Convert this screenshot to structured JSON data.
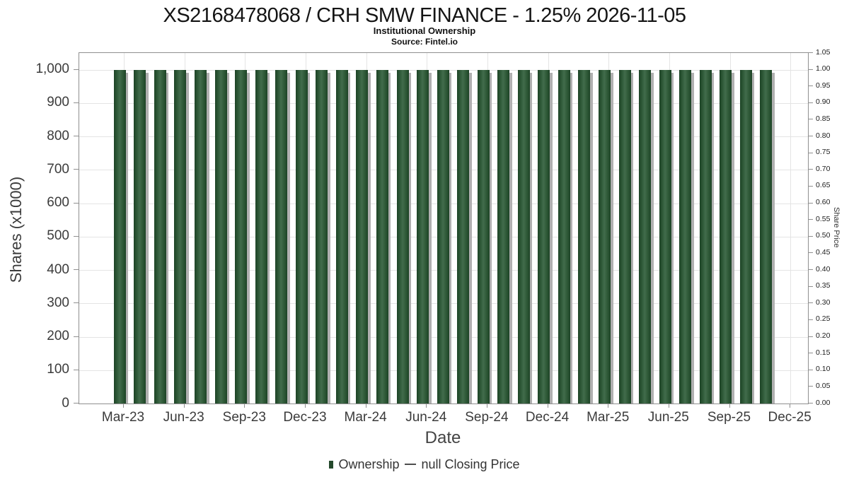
{
  "title": "XS2168478068 / CRH SMW FINANCE - 1.25% 2026-11-05",
  "subtitle": "Institutional Ownership",
  "source": "Source: Fintel.io",
  "colors": {
    "bar_edge": "#1d4426",
    "bar_mid": "#2c5635",
    "bar_highlight": "#416c4b",
    "bar_shadow": "#b0b0b0",
    "grid": "#e4e4e4",
    "frame": "#8f8f8f",
    "text": "#3b3b3b"
  },
  "chart_data": {
    "type": "bar",
    "title": "XS2168478068 / CRH SMW FINANCE - 1.25% 2026-11-05",
    "subtitle": "Institutional Ownership",
    "source": "Source: Fintel.io",
    "xlabel": "Date",
    "categories": [
      "Mar-23",
      "Apr-23",
      "May-23",
      "Jun-23",
      "Jul-23",
      "Aug-23",
      "Sep-23",
      "Oct-23",
      "Nov-23",
      "Dec-23",
      "Jan-24",
      "Feb-24",
      "Mar-24",
      "Apr-24",
      "May-24",
      "Jun-24",
      "Jul-24",
      "Aug-24",
      "Sep-24",
      "Oct-24",
      "Nov-24",
      "Dec-24",
      "Jan-25",
      "Feb-25",
      "Mar-25",
      "Apr-25",
      "May-25",
      "Jun-25",
      "Jul-25",
      "Aug-25",
      "Sep-25",
      "Oct-25",
      "Nov-25"
    ],
    "values": [
      1000,
      1000,
      1000,
      1000,
      1000,
      1000,
      1000,
      1000,
      1000,
      1000,
      1000,
      1000,
      1000,
      1000,
      1000,
      1000,
      1000,
      1000,
      1000,
      1000,
      1000,
      1000,
      1000,
      1000,
      1000,
      1000,
      1000,
      1000,
      1000,
      1000,
      1000,
      1000,
      1000
    ],
    "series": [
      {
        "name": "Ownership",
        "values_note": "all months 1000 (x1000 shares)"
      }
    ],
    "x_tick_labels": [
      "Mar-23",
      "Jun-23",
      "Sep-23",
      "Dec-23",
      "Mar-24",
      "Jun-24",
      "Sep-24",
      "Dec-24",
      "Mar-25",
      "Jun-25",
      "Sep-25",
      "Dec-25"
    ],
    "left_axis": {
      "label": "Shares (x1000)",
      "min": 0,
      "max": 1050,
      "tick_step": 100,
      "tick_labels": [
        "0",
        "100",
        "200",
        "300",
        "400",
        "500",
        "600",
        "700",
        "800",
        "900",
        "1,000"
      ]
    },
    "right_axis": {
      "label": "Share Price",
      "min": 0,
      "max": 1.05,
      "tick_step": 0.05,
      "tick_labels": [
        "0.00",
        "0.05",
        "0.10",
        "0.15",
        "0.20",
        "0.25",
        "0.30",
        "0.35",
        "0.40",
        "0.45",
        "0.50",
        "0.55",
        "0.60",
        "0.65",
        "0.70",
        "0.75",
        "0.80",
        "0.85",
        "0.90",
        "0.95",
        "1.00",
        "1.05"
      ]
    },
    "legend": [
      {
        "marker": "square",
        "label": "Ownership"
      },
      {
        "marker": "dash",
        "label": "null Closing Price"
      }
    ],
    "grid": true,
    "legend_position": "bottom"
  }
}
